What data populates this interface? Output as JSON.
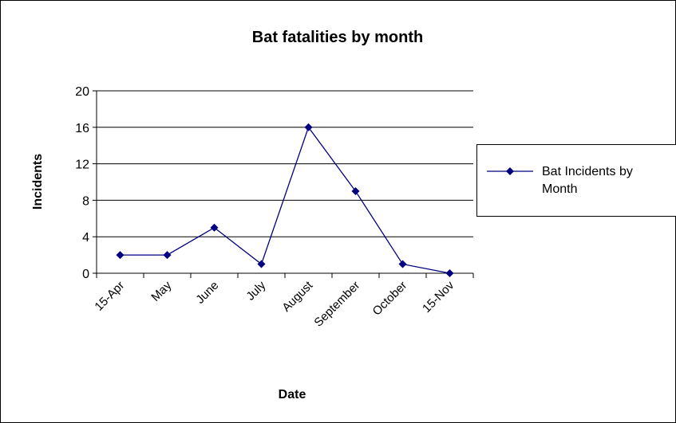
{
  "chart_data": {
    "type": "line",
    "title": "Bat fatalities by month",
    "x_label": "Date",
    "y_label": "Incidents",
    "categories": [
      "15-Apr",
      "May",
      "June",
      "July",
      "August",
      "September",
      "October",
      "15-Nov"
    ],
    "series": [
      {
        "name": "Bat Incidents by Month",
        "color": "#000080",
        "values": [
          2,
          2,
          5,
          1,
          16,
          9,
          1,
          0
        ]
      }
    ],
    "ylim": [
      0,
      20
    ],
    "yticks": [
      0,
      4,
      8,
      12,
      16,
      20
    ],
    "grid": true,
    "legend": "right"
  }
}
